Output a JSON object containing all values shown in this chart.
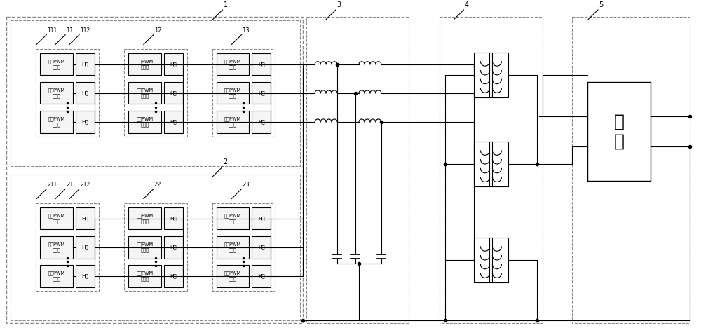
{
  "bg_color": "#ffffff",
  "line_color": "#000000",
  "dashed_color": "#888888",
  "fig_width": 10.0,
  "fig_height": 4.78,
  "pwm_text": "三相PWM\n整流器",
  "hbridge_text": "H桥",
  "load_text": "负\n载",
  "lw": 0.8,
  "lw_thick": 1.0,
  "fontsize_small": 5.0,
  "fontsize_label": 6.5,
  "fontsize_load": 18
}
